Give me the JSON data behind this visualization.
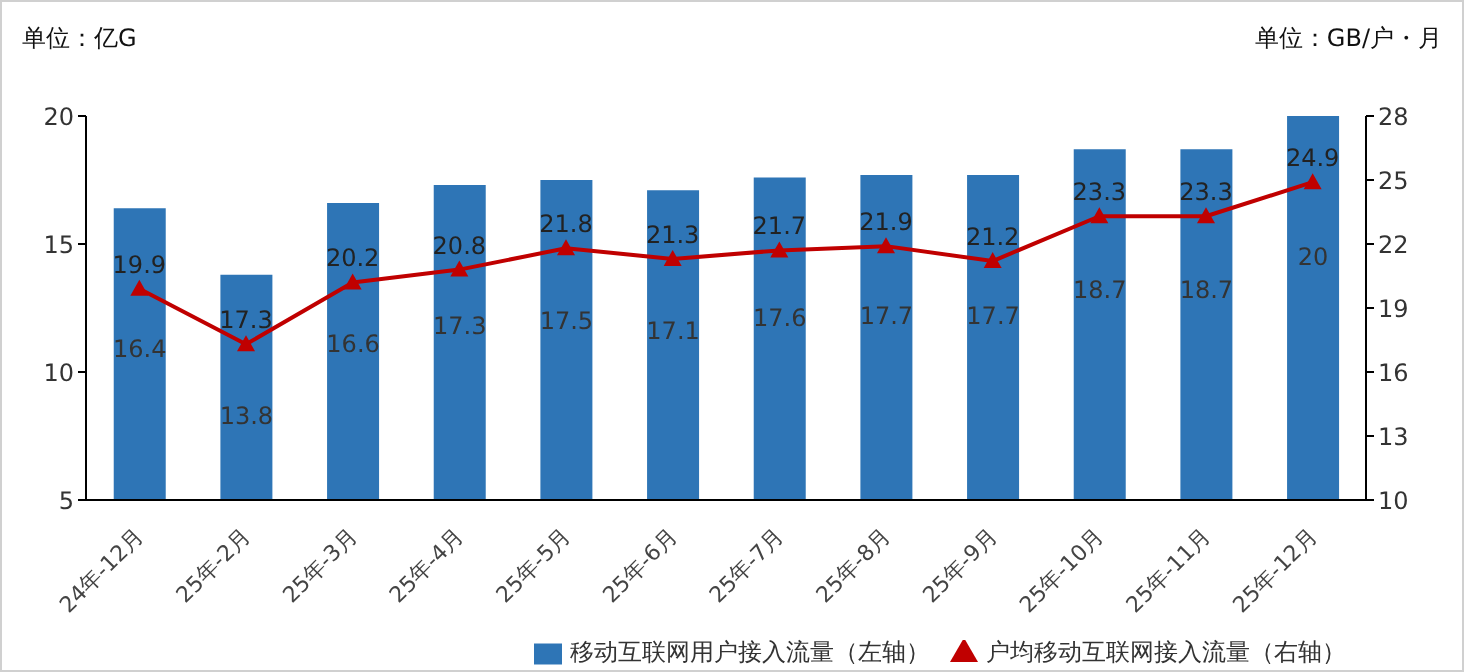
{
  "chart_data": {
    "type": "bar",
    "ylabel": "单位：亿G",
    "y2label": "单位：GB/户・月",
    "categories": [
      "24年-12月",
      "25年-2月",
      "25年-3月",
      "25年-4月",
      "25年-5月",
      "25年-6月",
      "25年-7月",
      "25年-8月",
      "25年-9月",
      "25年-10月",
      "25年-11月",
      "25年-12月"
    ],
    "series": [
      {
        "name": "移动互联网用户接入流量（左轴）",
        "color": "#2e75b6",
        "values": [
          16.4,
          13.8,
          16.6,
          17.3,
          17.5,
          17.1,
          17.6,
          17.7,
          17.7,
          18.7,
          18.7,
          20
        ]
      },
      {
        "name": "户均移动互联网接入流量（右轴）",
        "type": "line",
        "axis": "y2",
        "color": "#c00000",
        "marker": "triangle",
        "values": [
          19.9,
          17.3,
          20.2,
          20.8,
          21.8,
          21.3,
          21.7,
          21.9,
          21.2,
          23.3,
          23.3,
          24.9
        ]
      }
    ],
    "ylim": [
      5,
      20
    ],
    "yticks": [
      5,
      10,
      15,
      20
    ],
    "y2lim": [
      10,
      28
    ],
    "y2ticks": [
      10,
      13,
      16,
      19,
      22,
      25,
      28
    ],
    "data_labels": true,
    "legend": "bottom",
    "grid": false
  }
}
